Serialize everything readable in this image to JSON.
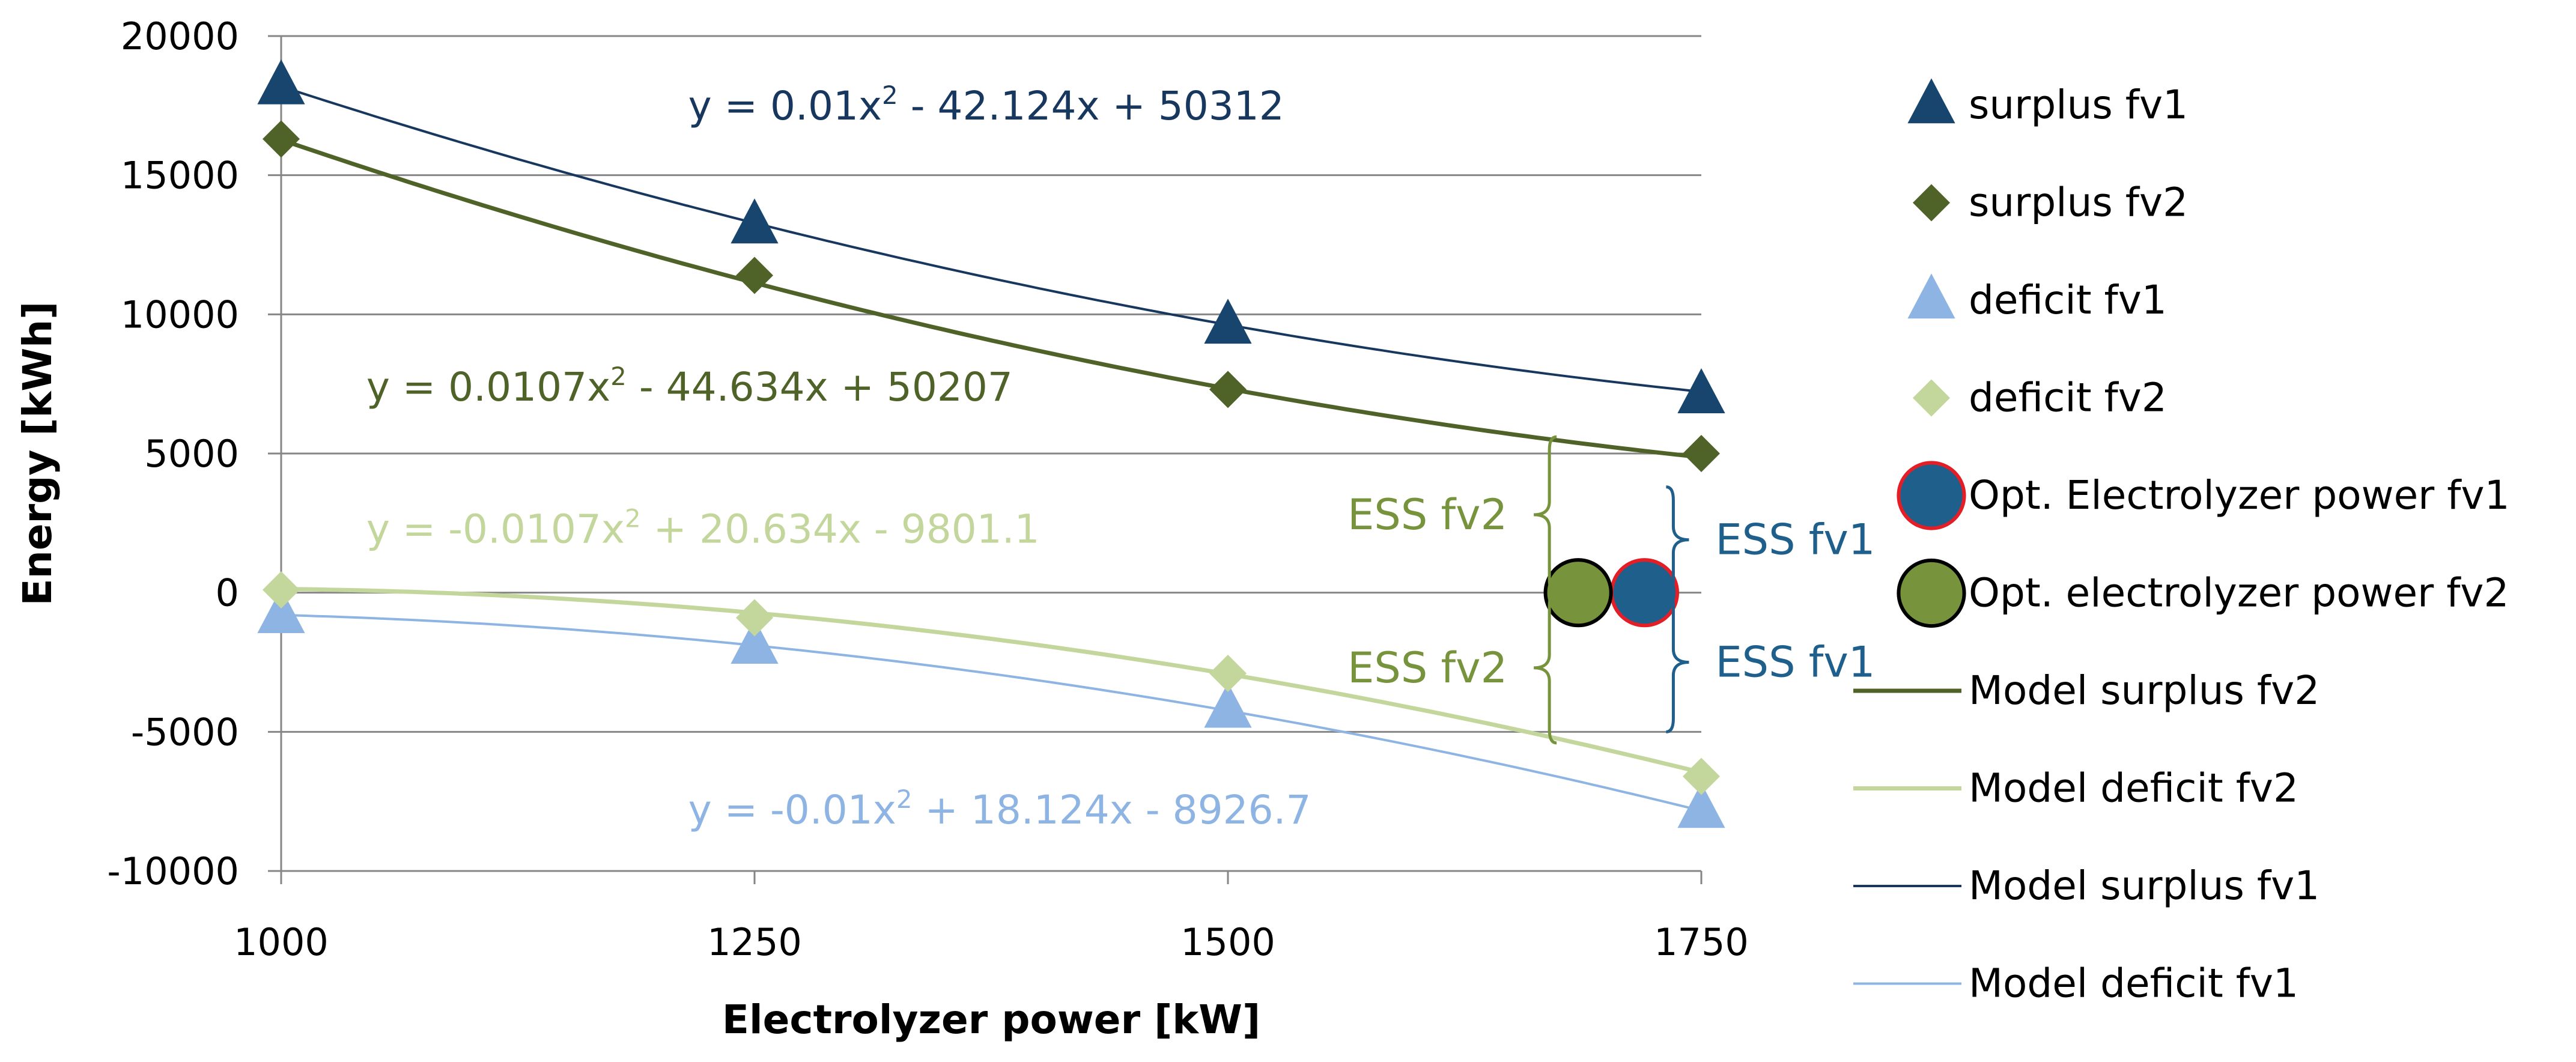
{
  "chart_data": {
    "type": "scatter",
    "xlabel": "Electrolyzer power [kW]",
    "ylabel": "Energy [kWh]",
    "xlim": [
      1000,
      1750
    ],
    "ylim": [
      -10000,
      20000
    ],
    "x_ticks": [
      1000,
      1250,
      1500,
      1750
    ],
    "y_ticks": [
      20000,
      15000,
      10000,
      5000,
      0,
      -5000,
      -10000
    ],
    "grid": "horizontal",
    "legend_position": "right",
    "series": [
      {
        "key": "surplus_fv1",
        "name": "surplus fv1",
        "kind": "marker",
        "marker": "triangle",
        "color": "#17456e",
        "x": [
          1000,
          1250,
          1500,
          1750
        ],
        "y": [
          18200,
          13200,
          9600,
          7100
        ]
      },
      {
        "key": "surplus_fv2",
        "name": "surplus fv2",
        "kind": "marker",
        "marker": "diamond",
        "color": "#4f6228",
        "x": [
          1000,
          1250,
          1500,
          1750
        ],
        "y": [
          16300,
          11400,
          7300,
          5000
        ]
      },
      {
        "key": "deficit_fv1",
        "name": "deficit fv1",
        "kind": "marker",
        "marker": "triangle",
        "color": "#8eb4e3",
        "x": [
          1000,
          1250,
          1500,
          1750
        ],
        "y": [
          -800,
          -1900,
          -4200,
          -7800
        ]
      },
      {
        "key": "deficit_fv2",
        "name": "deficit fv2",
        "kind": "marker",
        "marker": "diamond",
        "color": "#c3d69b",
        "x": [
          1000,
          1250,
          1500,
          1750
        ],
        "y": [
          100,
          -900,
          -2900,
          -6600
        ]
      },
      {
        "key": "opt_fv1",
        "name": "Opt. Electrolyzer power fv1",
        "kind": "marker",
        "marker": "circle",
        "color": "#1f5f8b",
        "edge": "#e41e26",
        "x": [
          1720
        ],
        "y": [
          0
        ]
      },
      {
        "key": "opt_fv2",
        "name": "Opt. electrolyzer power fv2",
        "kind": "marker",
        "marker": "circle",
        "color": "#77933c",
        "edge": "#000000",
        "x": [
          1685
        ],
        "y": [
          0
        ]
      },
      {
        "key": "model_surplus_fv2",
        "name": "Model surplus fv2",
        "kind": "line",
        "color": "#4f6228",
        "width": 7,
        "coeffs": [
          0.0107,
          -44.634,
          50207
        ]
      },
      {
        "key": "model_deficit_fv2",
        "name": "Model deficit fv2",
        "kind": "line",
        "color": "#c3d69b",
        "width": 7,
        "coeffs": [
          -0.0107,
          20.634,
          -9801.1
        ]
      },
      {
        "key": "model_surplus_fv1",
        "name": "Model surplus fv1",
        "kind": "line",
        "color": "#17375e",
        "width": 4,
        "coeffs": [
          0.01,
          -42.124,
          50312
        ]
      },
      {
        "key": "model_deficit_fv1",
        "name": "Model deficit fv1",
        "kind": "line",
        "color": "#8eb4e3",
        "width": 4,
        "coeffs": [
          -0.01,
          18.124,
          -8926.7
        ]
      }
    ],
    "equations": [
      {
        "prefix": "y = 0.01x",
        "suffix": " - 42.124x + 50312",
        "color": "#17375e",
        "x": 1215,
        "y": 17000
      },
      {
        "prefix": "y = 0.0107x",
        "suffix": " - 44.634x + 50207",
        "color": "#4f6228",
        "x": 1045,
        "y": 6900
      },
      {
        "prefix": "y = -0.0107x",
        "suffix": " + 20.634x - 9801.1",
        "color": "#c3d69b",
        "x": 1045,
        "y": 1800
      },
      {
        "prefix": "y = -0.01x",
        "suffix": " + 18.124x - 8926.7",
        "color": "#8eb4e3",
        "x": 1215,
        "y": -8300
      }
    ],
    "superscript": "2",
    "annotations": [
      {
        "label": "ESS fv2",
        "color": "#77933c",
        "side": "left",
        "x": 1685,
        "y_from": 0,
        "y_to": 5600
      },
      {
        "label": "ESS fv2",
        "color": "#77933c",
        "side": "left",
        "x": 1685,
        "y_from": -5400,
        "y_to": 0
      },
      {
        "label": "ESS fv1",
        "color": "#1f5f8b",
        "side": "right",
        "x": 1720,
        "y_from": 0,
        "y_to": 3800
      },
      {
        "label": "ESS fv1",
        "color": "#1f5f8b",
        "side": "right",
        "x": 1720,
        "y_from": -5000,
        "y_to": 0
      }
    ]
  }
}
